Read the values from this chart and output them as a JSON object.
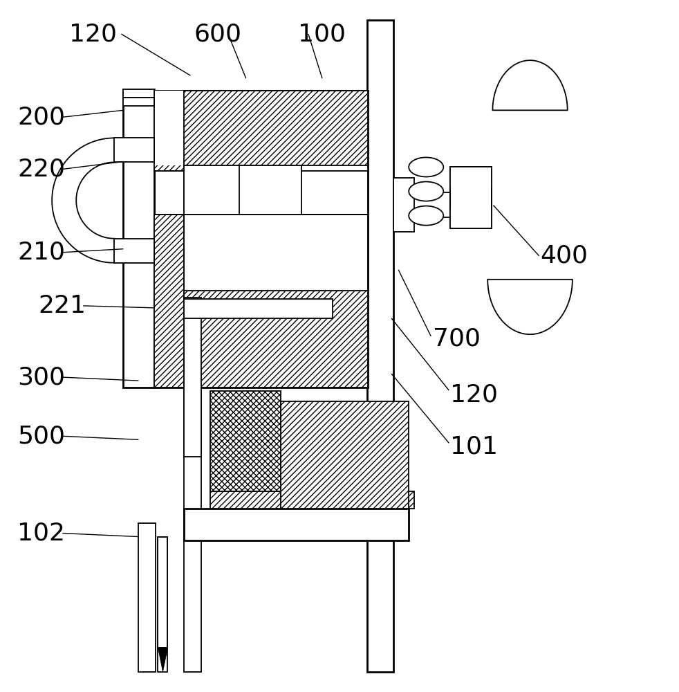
{
  "bg_color": "#ffffff",
  "lw": 1.3,
  "figsize": [
    9.82,
    10.0
  ],
  "dpi": 100
}
